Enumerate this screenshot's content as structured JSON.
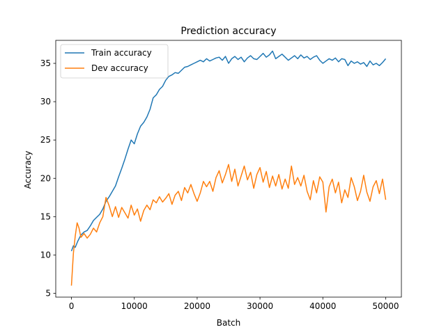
{
  "chart_data": {
    "type": "line",
    "title": "Prediction accuracy",
    "xlabel": "Batch",
    "ylabel": "Accuracy",
    "xlim": [
      -2500,
      52500
    ],
    "ylim": [
      4.5,
      38
    ],
    "xticks": [
      0,
      10000,
      20000,
      30000,
      40000,
      50000
    ],
    "yticks": [
      5,
      10,
      15,
      20,
      25,
      30,
      35
    ],
    "grid": false,
    "legend": "top-left",
    "series": [
      {
        "name": "Train accuracy",
        "color": "#1f77b4",
        "x": [
          0,
          300,
          600,
          1000,
          1500,
          2000,
          2500,
          3000,
          3500,
          4000,
          4500,
          5000,
          5500,
          6000,
          6500,
          7000,
          7500,
          8000,
          8500,
          9000,
          9500,
          10000,
          10500,
          11000,
          11500,
          12000,
          12500,
          13000,
          13500,
          14000,
          14500,
          15000,
          15500,
          16000,
          16500,
          17000,
          17500,
          18000,
          18500,
          19000,
          19500,
          20000,
          20500,
          21000,
          21500,
          22000,
          22500,
          23000,
          23500,
          24000,
          24500,
          25000,
          25500,
          26000,
          26500,
          27000,
          27500,
          28000,
          28500,
          29000,
          29500,
          30000,
          30500,
          31000,
          31500,
          32000,
          32500,
          33000,
          33500,
          34000,
          34500,
          35000,
          35500,
          36000,
          36500,
          37000,
          37500,
          38000,
          38500,
          39000,
          39500,
          40000,
          40500,
          41000,
          41500,
          42000,
          42500,
          43000,
          43500,
          44000,
          44500,
          45000,
          45500,
          46000,
          46500,
          47000,
          47500,
          48000,
          48500,
          49000,
          49500,
          50000
        ],
        "values": [
          10.5,
          11.2,
          11.0,
          11.8,
          12.6,
          13.0,
          13.2,
          13.8,
          14.5,
          14.9,
          15.3,
          16.0,
          17.0,
          17.6,
          18.3,
          19.0,
          20.2,
          21.3,
          22.5,
          23.8,
          25.0,
          24.5,
          25.8,
          26.8,
          27.3,
          28.0,
          29.0,
          30.5,
          30.9,
          31.6,
          32.0,
          32.8,
          33.3,
          33.5,
          33.8,
          33.7,
          34.1,
          34.5,
          34.6,
          34.8,
          35.0,
          35.2,
          35.4,
          35.2,
          35.6,
          35.3,
          35.5,
          35.7,
          35.8,
          35.4,
          35.9,
          35.0,
          35.6,
          35.9,
          35.5,
          35.8,
          35.2,
          35.7,
          36.0,
          35.6,
          35.5,
          35.9,
          36.3,
          35.8,
          36.1,
          36.6,
          35.6,
          35.9,
          36.2,
          35.8,
          35.4,
          35.7,
          36.0,
          35.6,
          36.1,
          35.7,
          35.9,
          35.5,
          35.8,
          36.0,
          35.4,
          35.0,
          35.3,
          35.6,
          35.4,
          35.7,
          35.2,
          35.6,
          35.5,
          34.7,
          35.3,
          35.0,
          35.2,
          34.9,
          35.1,
          34.6,
          35.3,
          34.8,
          35.0,
          34.7,
          35.1,
          35.6
        ]
      },
      {
        "name": "Dev accuracy",
        "color": "#ff7f0e",
        "x": [
          0,
          300,
          600,
          900,
          1200,
          1500,
          2000,
          2500,
          3000,
          3500,
          4000,
          4500,
          5000,
          5500,
          6000,
          6500,
          7000,
          7500,
          8000,
          8500,
          9000,
          9500,
          10000,
          10500,
          11000,
          11500,
          12000,
          12500,
          13000,
          13500,
          14000,
          14500,
          15000,
          15500,
          16000,
          16500,
          17000,
          17500,
          18000,
          18500,
          19000,
          19500,
          20000,
          20500,
          21000,
          21500,
          22000,
          22500,
          23000,
          23500,
          24000,
          24500,
          25000,
          25500,
          26000,
          26500,
          27000,
          27500,
          28000,
          28500,
          29000,
          29500,
          30000,
          30500,
          31000,
          31500,
          32000,
          32500,
          33000,
          33500,
          34000,
          34500,
          35000,
          35500,
          36000,
          36500,
          37000,
          37500,
          38000,
          38500,
          39000,
          39500,
          40000,
          40500,
          41000,
          41500,
          42000,
          42500,
          43000,
          43500,
          44000,
          44500,
          45000,
          45500,
          46000,
          46500,
          47000,
          47500,
          48000,
          48500,
          49000,
          49500,
          50000
        ],
        "values": [
          6.0,
          10.2,
          12.5,
          14.2,
          13.5,
          12.3,
          12.8,
          12.2,
          12.7,
          13.5,
          13.0,
          14.2,
          15.0,
          17.5,
          16.4,
          15.0,
          16.3,
          14.9,
          16.2,
          15.5,
          14.8,
          16.5,
          15.2,
          16.0,
          14.4,
          15.8,
          16.5,
          15.9,
          17.2,
          16.8,
          17.6,
          16.9,
          17.4,
          18.0,
          16.6,
          17.8,
          18.3,
          17.1,
          18.8,
          18.1,
          19.2,
          18.0,
          17.0,
          18.1,
          19.6,
          18.9,
          19.6,
          18.3,
          20.1,
          21.0,
          19.4,
          20.5,
          21.8,
          19.6,
          21.2,
          19.0,
          20.3,
          21.6,
          19.8,
          20.8,
          18.7,
          20.5,
          21.4,
          19.5,
          20.9,
          18.8,
          20.3,
          19.0,
          20.5,
          18.6,
          19.9,
          18.7,
          21.6,
          19.2,
          20.1,
          19.0,
          20.4,
          18.3,
          17.2,
          19.7,
          18.1,
          20.2,
          19.5,
          15.6,
          18.9,
          19.9,
          18.1,
          19.5,
          16.8,
          18.5,
          17.5,
          20.1,
          18.9,
          17.1,
          18.3,
          20.4,
          18.2,
          17.0,
          18.9,
          19.7,
          18.0,
          19.9,
          17.2
        ]
      }
    ]
  }
}
